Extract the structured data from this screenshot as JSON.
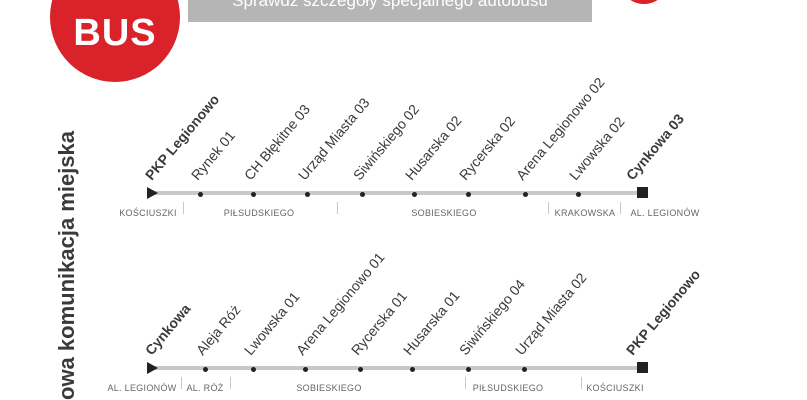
{
  "badge": {
    "label": "BUS"
  },
  "banner": {
    "text": "Sprawdź szczegóły specjalnego autobusu"
  },
  "side_label": "owa komunikacja miejska",
  "colors": {
    "brand_red": "#d9222a",
    "banner_gray": "#b5b5b5",
    "line_gray": "#c8c8c8"
  },
  "route1": {
    "stops": [
      {
        "name": "PKP Legionowo",
        "terminal": true
      },
      {
        "name": "Rynek 01",
        "terminal": false
      },
      {
        "name": "CH Błękitne 03",
        "terminal": false
      },
      {
        "name": "Urząd Miasta 03",
        "terminal": false
      },
      {
        "name": "Siwińskiego 02",
        "terminal": false
      },
      {
        "name": "Husarska 02",
        "terminal": false
      },
      {
        "name": "Rycerska 02",
        "terminal": false
      },
      {
        "name": "Arena Legionowo 02",
        "terminal": false
      },
      {
        "name": "Lwowska 02",
        "terminal": false
      },
      {
        "name": "Cynkowa 03",
        "terminal": true
      }
    ],
    "streets": [
      "KOŚCIUSZKI",
      "PIŁSUDSKIEGO",
      "SOBIESKIEGO",
      "KRAKOWSKA",
      "AL. LEGIONÓW"
    ]
  },
  "route2": {
    "stops": [
      {
        "name": "Cynkowa",
        "terminal": true
      },
      {
        "name": "Aleja Róż",
        "terminal": false
      },
      {
        "name": "Lwowska 01",
        "terminal": false
      },
      {
        "name": "Arena Legionowo 01",
        "terminal": false
      },
      {
        "name": "Rycerska 01",
        "terminal": false
      },
      {
        "name": "Husarska 01",
        "terminal": false
      },
      {
        "name": "Siwińskiego 04",
        "terminal": false
      },
      {
        "name": "Urząd Miasta 02",
        "terminal": false
      },
      {
        "name": "PKP Legionowo",
        "terminal": true
      }
    ],
    "streets": [
      "AL. LEGIONÓW",
      "AL. RÓŻ",
      "SOBIESKIEGO",
      "PIŁSUDSKIEGO",
      "KOŚCIUSZKI"
    ]
  }
}
